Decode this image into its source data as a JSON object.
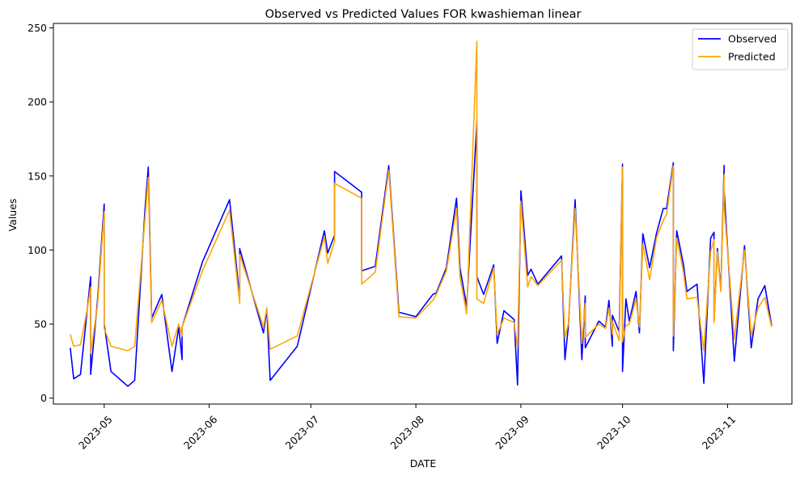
{
  "chart_data": {
    "type": "line",
    "title": "Observed vs Predicted Values FOR kwashieman linear",
    "xlabel": "DATE",
    "ylabel": "Values",
    "x_axis_type": "date",
    "xlim": [
      "2023-04-16",
      "2023-11-20"
    ],
    "ylim": [
      -4,
      253
    ],
    "x_ticks": [
      "2023-05-01",
      "2023-06-01",
      "2023-07-01",
      "2023-08-01",
      "2023-09-01",
      "2023-10-01",
      "2023-11-01"
    ],
    "x_tick_labels": [
      "2023-05",
      "2023-06",
      "2023-07",
      "2023-08",
      "2023-09",
      "2023-10",
      "2023-11"
    ],
    "y_ticks": [
      0,
      50,
      100,
      150,
      200,
      250
    ],
    "y_tick_labels": [
      "0",
      "50",
      "100",
      "150",
      "200",
      "250"
    ],
    "x_tick_rotation": 45,
    "grid": false,
    "legend_position": "top-right",
    "series": [
      {
        "name": "Observed",
        "color": "#0000ff",
        "points": [
          [
            "2023-04-21",
            34
          ],
          [
            "2023-04-22",
            13
          ],
          [
            "2023-04-24",
            16
          ],
          [
            "2023-04-26",
            60
          ],
          [
            "2023-04-27",
            82
          ],
          [
            "2023-04-27",
            16
          ],
          [
            "2023-04-29",
            65
          ],
          [
            "2023-05-01",
            131
          ],
          [
            "2023-05-01",
            50
          ],
          [
            "2023-05-03",
            18
          ],
          [
            "2023-05-08",
            8
          ],
          [
            "2023-05-10",
            12
          ],
          [
            "2023-05-13",
            126
          ],
          [
            "2023-05-14",
            156
          ],
          [
            "2023-05-15",
            54
          ],
          [
            "2023-05-18",
            70
          ],
          [
            "2023-05-21",
            18
          ],
          [
            "2023-05-23",
            48
          ],
          [
            "2023-05-24",
            26
          ],
          [
            "2023-05-24",
            48
          ],
          [
            "2023-05-30",
            92
          ],
          [
            "2023-06-07",
            134
          ],
          [
            "2023-06-10",
            68
          ],
          [
            "2023-06-10",
            101
          ],
          [
            "2023-06-17",
            44
          ],
          [
            "2023-06-18",
            60
          ],
          [
            "2023-06-19",
            12
          ],
          [
            "2023-06-27",
            35
          ],
          [
            "2023-07-05",
            113
          ],
          [
            "2023-07-06",
            98
          ],
          [
            "2023-07-08",
            110
          ],
          [
            "2023-07-08",
            153
          ],
          [
            "2023-07-16",
            139
          ],
          [
            "2023-07-16",
            86
          ],
          [
            "2023-07-20",
            89
          ],
          [
            "2023-07-24",
            157
          ],
          [
            "2023-07-27",
            58
          ],
          [
            "2023-08-01",
            55
          ],
          [
            "2023-08-06",
            70
          ],
          [
            "2023-08-07",
            71
          ],
          [
            "2023-08-10",
            88
          ],
          [
            "2023-08-13",
            135
          ],
          [
            "2023-08-14",
            88
          ],
          [
            "2023-08-16",
            62
          ],
          [
            "2023-08-19",
            186
          ],
          [
            "2023-08-19",
            82
          ],
          [
            "2023-08-21",
            70
          ],
          [
            "2023-08-24",
            90
          ],
          [
            "2023-08-25",
            37
          ],
          [
            "2023-08-27",
            59
          ],
          [
            "2023-08-30",
            53
          ],
          [
            "2023-08-31",
            9
          ],
          [
            "2023-09-01",
            140
          ],
          [
            "2023-09-03",
            83
          ],
          [
            "2023-09-04",
            87
          ],
          [
            "2023-09-06",
            77
          ],
          [
            "2023-09-13",
            96
          ],
          [
            "2023-09-14",
            26
          ],
          [
            "2023-09-15",
            48
          ],
          [
            "2023-09-17",
            134
          ],
          [
            "2023-09-19",
            26
          ],
          [
            "2023-09-20",
            69
          ],
          [
            "2023-09-20",
            34
          ],
          [
            "2023-09-24",
            52
          ],
          [
            "2023-09-26",
            48
          ],
          [
            "2023-09-27",
            66
          ],
          [
            "2023-09-28",
            35
          ],
          [
            "2023-09-28",
            56
          ],
          [
            "2023-09-30",
            45
          ],
          [
            "2023-10-01",
            158
          ],
          [
            "2023-10-01",
            18
          ],
          [
            "2023-10-02",
            67
          ],
          [
            "2023-10-03",
            52
          ],
          [
            "2023-10-05",
            72
          ],
          [
            "2023-10-06",
            44
          ],
          [
            "2023-10-07",
            111
          ],
          [
            "2023-10-09",
            88
          ],
          [
            "2023-10-11",
            111
          ],
          [
            "2023-10-13",
            128
          ],
          [
            "2023-10-14",
            128
          ],
          [
            "2023-10-16",
            159
          ],
          [
            "2023-10-16",
            32
          ],
          [
            "2023-10-17",
            113
          ],
          [
            "2023-10-19",
            90
          ],
          [
            "2023-10-20",
            72
          ],
          [
            "2023-10-23",
            77
          ],
          [
            "2023-10-25",
            10
          ],
          [
            "2023-10-27",
            108
          ],
          [
            "2023-10-28",
            112
          ],
          [
            "2023-10-28",
            52
          ],
          [
            "2023-10-29",
            101
          ],
          [
            "2023-10-30",
            73
          ],
          [
            "2023-10-31",
            157
          ],
          [
            "2023-10-31",
            140
          ],
          [
            "2023-11-03",
            25
          ],
          [
            "2023-11-06",
            103
          ],
          [
            "2023-11-08",
            34
          ],
          [
            "2023-11-10",
            67
          ],
          [
            "2023-11-12",
            76
          ],
          [
            "2023-11-14",
            49
          ]
        ]
      },
      {
        "name": "Predicted",
        "color": "#ffa500",
        "points": [
          [
            "2023-04-21",
            43
          ],
          [
            "2023-04-22",
            35
          ],
          [
            "2023-04-24",
            36
          ],
          [
            "2023-04-26",
            60
          ],
          [
            "2023-04-27",
            75
          ],
          [
            "2023-04-27",
            30
          ],
          [
            "2023-04-29",
            62
          ],
          [
            "2023-05-01",
            126
          ],
          [
            "2023-05-01",
            47
          ],
          [
            "2023-05-03",
            35
          ],
          [
            "2023-05-08",
            32
          ],
          [
            "2023-05-10",
            35
          ],
          [
            "2023-05-13",
            120
          ],
          [
            "2023-05-14",
            149
          ],
          [
            "2023-05-15",
            51
          ],
          [
            "2023-05-18",
            66
          ],
          [
            "2023-05-21",
            35
          ],
          [
            "2023-05-23",
            50
          ],
          [
            "2023-05-24",
            42
          ],
          [
            "2023-05-24",
            48
          ],
          [
            "2023-05-30",
            86
          ],
          [
            "2023-06-07",
            127
          ],
          [
            "2023-06-10",
            64
          ],
          [
            "2023-06-10",
            97
          ],
          [
            "2023-06-17",
            48
          ],
          [
            "2023-06-18",
            61
          ],
          [
            "2023-06-19",
            33
          ],
          [
            "2023-06-27",
            42
          ],
          [
            "2023-07-05",
            109
          ],
          [
            "2023-07-06",
            91
          ],
          [
            "2023-07-08",
            106
          ],
          [
            "2023-07-08",
            145
          ],
          [
            "2023-07-16",
            135
          ],
          [
            "2023-07-16",
            77
          ],
          [
            "2023-07-20",
            85
          ],
          [
            "2023-07-24",
            154
          ],
          [
            "2023-07-27",
            55
          ],
          [
            "2023-08-01",
            54
          ],
          [
            "2023-08-06",
            66
          ],
          [
            "2023-08-07",
            70
          ],
          [
            "2023-08-10",
            86
          ],
          [
            "2023-08-13",
            128
          ],
          [
            "2023-08-14",
            82
          ],
          [
            "2023-08-16",
            57
          ],
          [
            "2023-08-19",
            241
          ],
          [
            "2023-08-19",
            67
          ],
          [
            "2023-08-21",
            64
          ],
          [
            "2023-08-24",
            88
          ],
          [
            "2023-08-25",
            43
          ],
          [
            "2023-08-27",
            54
          ],
          [
            "2023-08-30",
            51
          ],
          [
            "2023-08-31",
            34
          ],
          [
            "2023-09-01",
            133
          ],
          [
            "2023-09-03",
            75
          ],
          [
            "2023-09-04",
            82
          ],
          [
            "2023-09-06",
            76
          ],
          [
            "2023-09-13",
            93
          ],
          [
            "2023-09-14",
            41
          ],
          [
            "2023-09-15",
            50
          ],
          [
            "2023-09-17",
            128
          ],
          [
            "2023-09-19",
            37
          ],
          [
            "2023-09-20",
            64
          ],
          [
            "2023-09-20",
            41
          ],
          [
            "2023-09-24",
            50
          ],
          [
            "2023-09-26",
            47
          ],
          [
            "2023-09-27",
            61
          ],
          [
            "2023-09-28",
            43
          ],
          [
            "2023-09-28",
            52
          ],
          [
            "2023-09-30",
            39
          ],
          [
            "2023-10-01",
            156
          ],
          [
            "2023-10-01",
            38
          ],
          [
            "2023-10-02",
            49
          ],
          [
            "2023-10-03",
            50
          ],
          [
            "2023-10-05",
            67
          ],
          [
            "2023-10-06",
            48
          ],
          [
            "2023-10-07",
            104
          ],
          [
            "2023-10-09",
            80
          ],
          [
            "2023-10-11",
            108
          ],
          [
            "2023-10-13",
            120
          ],
          [
            "2023-10-14",
            124
          ],
          [
            "2023-10-16",
            157
          ],
          [
            "2023-10-16",
            42
          ],
          [
            "2023-10-17",
            108
          ],
          [
            "2023-10-19",
            85
          ],
          [
            "2023-10-20",
            67
          ],
          [
            "2023-10-23",
            68
          ],
          [
            "2023-10-25",
            32
          ],
          [
            "2023-10-27",
            99
          ],
          [
            "2023-10-28",
            107
          ],
          [
            "2023-10-28",
            51
          ],
          [
            "2023-10-29",
            99
          ],
          [
            "2023-10-30",
            72
          ],
          [
            "2023-10-31",
            151
          ],
          [
            "2023-10-31",
            130
          ],
          [
            "2023-11-03",
            40
          ],
          [
            "2023-11-06",
            100
          ],
          [
            "2023-11-08",
            42
          ],
          [
            "2023-11-10",
            61
          ],
          [
            "2023-11-12",
            68
          ],
          [
            "2023-11-14",
            48
          ]
        ]
      }
    ]
  }
}
